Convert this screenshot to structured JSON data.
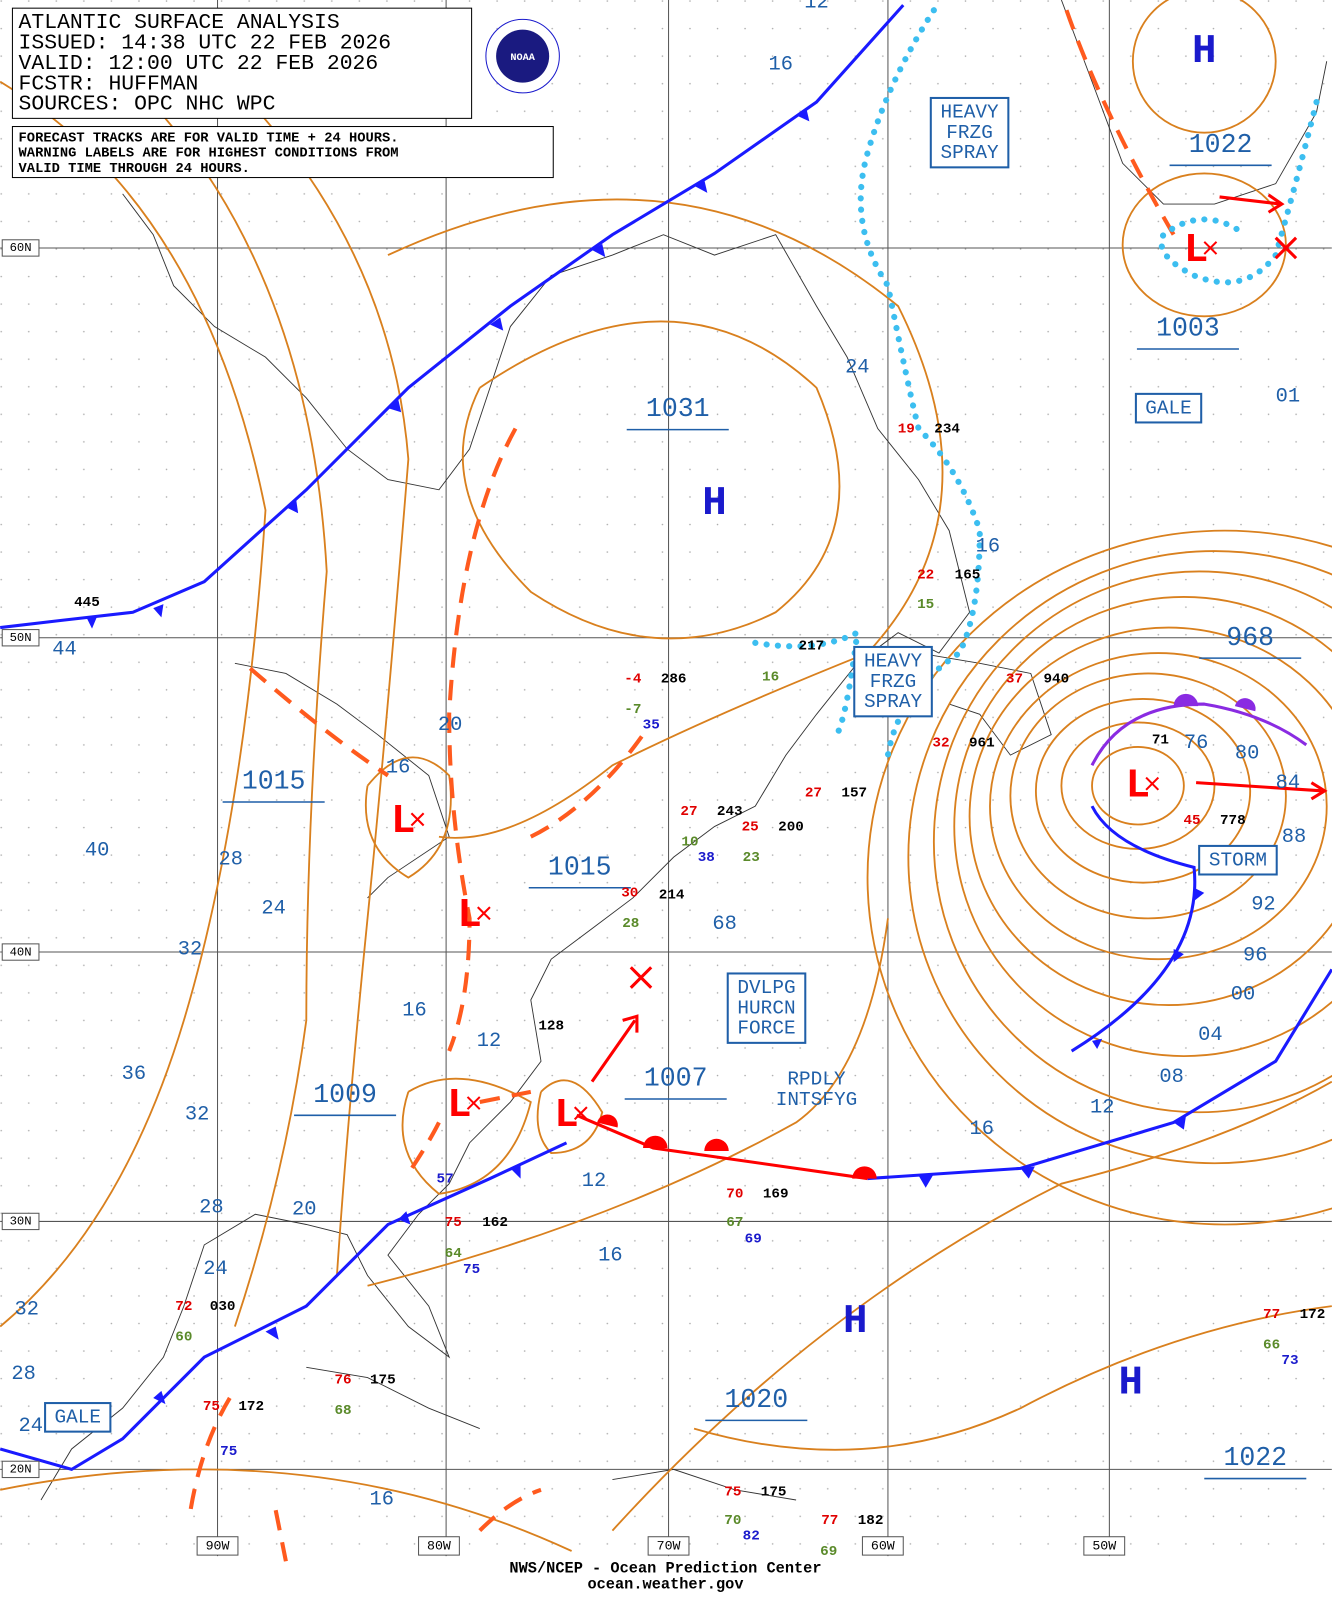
{
  "header": {
    "lines": [
      "ATLANTIC SURFACE ANALYSIS",
      "ISSUED: 14:38 UTC 22 FEB 2026",
      "VALID:  12:00 UTC 22 FEB 2026",
      "FCSTR:  HUFFMAN",
      "SOURCES: OPC NHC WPC"
    ],
    "logo": "NOAA"
  },
  "notes": [
    "FORECAST TRACKS ARE FOR VALID TIME + 24 HOURS.",
    "WARNING LABELS ARE FOR HIGHEST CONDITIONS FROM",
    "VALID TIME THROUGH 24 HOURS."
  ],
  "lat_labels": [
    "60N",
    "50N",
    "40N",
    "30N",
    "20N"
  ],
  "lon_labels": [
    "90W",
    "80W",
    "70W",
    "60W",
    "50W"
  ],
  "isobar_labels": [
    "12",
    "16",
    "24",
    "16",
    "968",
    "76",
    "80",
    "84",
    "88",
    "92",
    "96",
    "00",
    "04",
    "08",
    "12",
    "16",
    "1022",
    "1003",
    "01",
    "1031",
    "1015",
    "16",
    "20",
    "28",
    "24",
    "40",
    "32",
    "1015",
    "68",
    "16",
    "12",
    "1009",
    "1007",
    "36",
    "32",
    "12",
    "28",
    "20",
    "16",
    "24",
    "32",
    "28",
    "24",
    "1020",
    "1022",
    "16",
    "44"
  ],
  "centers": [
    "H",
    "H",
    "H",
    "H",
    "L",
    "L",
    "L",
    "L",
    "L",
    "L"
  ],
  "warnings": [
    [
      "HEAVY",
      "FRZG",
      "SPRAY"
    ],
    [
      "HEAVY",
      "FRZG",
      "SPRAY"
    ],
    [
      "GALE"
    ],
    [
      "STORM"
    ],
    [
      "DVLPG",
      "HURCN",
      "FORCE"
    ],
    [
      "GALE"
    ]
  ],
  "annotations": [
    [
      "RPDLY",
      "INTSFYG"
    ]
  ],
  "stations": [
    {
      "text": "445",
      "color": "#000000"
    },
    {
      "text": "286",
      "color": "#000000"
    },
    {
      "text": "217",
      "color": "#000000"
    },
    {
      "text": "234",
      "color": "#000000"
    },
    {
      "text": "165",
      "color": "#000000"
    },
    {
      "text": "940",
      "color": "#000000"
    },
    {
      "text": "961",
      "color": "#000000"
    },
    {
      "text": "71",
      "color": "#000000"
    },
    {
      "text": "778",
      "color": "#000000"
    },
    {
      "text": "243",
      "color": "#000000"
    },
    {
      "text": "200",
      "color": "#000000"
    },
    {
      "text": "157",
      "color": "#000000"
    },
    {
      "text": "214",
      "color": "#000000"
    },
    {
      "text": "128",
      "color": "#000000"
    },
    {
      "text": "57",
      "color": "#1a1acc"
    },
    {
      "text": "162",
      "color": "#000000"
    },
    {
      "text": "169",
      "color": "#000000"
    },
    {
      "text": "030",
      "color": "#000000"
    },
    {
      "text": "175",
      "color": "#000000"
    },
    {
      "text": "172",
      "color": "#000000"
    },
    {
      "text": "175",
      "color": "#000000"
    },
    {
      "text": "182",
      "color": "#000000"
    },
    {
      "text": "172",
      "color": "#000000"
    },
    {
      "text": "-4",
      "color": "#e00000"
    },
    {
      "text": "22",
      "color": "#e00000"
    },
    {
      "text": "32",
      "color": "#e00000"
    },
    {
      "text": "27",
      "color": "#e00000"
    },
    {
      "text": "25",
      "color": "#e00000"
    },
    {
      "text": "30",
      "color": "#e00000"
    },
    {
      "text": "75",
      "color": "#e00000"
    },
    {
      "text": "70",
      "color": "#e00000"
    },
    {
      "text": "72",
      "color": "#e00000"
    },
    {
      "text": "76",
      "color": "#e00000"
    },
    {
      "text": "75",
      "color": "#e00000"
    },
    {
      "text": "75",
      "color": "#e00000"
    },
    {
      "text": "77",
      "color": "#e00000"
    },
    {
      "text": "77",
      "color": "#e00000"
    },
    {
      "text": "19",
      "color": "#e00000"
    },
    {
      "text": "37",
      "color": "#e00000"
    },
    {
      "text": "45",
      "color": "#e00000"
    },
    {
      "text": "27",
      "color": "#e00000"
    },
    {
      "text": "-7",
      "color": "#5a8a2a"
    },
    {
      "text": "16",
      "color": "#5a8a2a"
    },
    {
      "text": "15",
      "color": "#5a8a2a"
    },
    {
      "text": "10",
      "color": "#5a8a2a"
    },
    {
      "text": "23",
      "color": "#5a8a2a"
    },
    {
      "text": "28",
      "color": "#5a8a2a"
    },
    {
      "text": "64",
      "color": "#5a8a2a"
    },
    {
      "text": "67",
      "color": "#5a8a2a"
    },
    {
      "text": "60",
      "color": "#5a8a2a"
    },
    {
      "text": "68",
      "color": "#5a8a2a"
    },
    {
      "text": "70",
      "color": "#5a8a2a"
    },
    {
      "text": "69",
      "color": "#5a8a2a"
    },
    {
      "text": "66",
      "color": "#5a8a2a"
    },
    {
      "text": "35",
      "color": "#1a1acc"
    },
    {
      "text": "38",
      "color": "#1a1acc"
    },
    {
      "text": "75",
      "color": "#1a1acc"
    },
    {
      "text": "69",
      "color": "#1a1acc"
    },
    {
      "text": "75",
      "color": "#1a1acc"
    },
    {
      "text": "82",
      "color": "#1a1acc"
    },
    {
      "text": "73",
      "color": "#1a1acc"
    }
  ],
  "footer": [
    "NWS/NCEP - Ocean Prediction Center",
    "ocean.weather.gov"
  ]
}
